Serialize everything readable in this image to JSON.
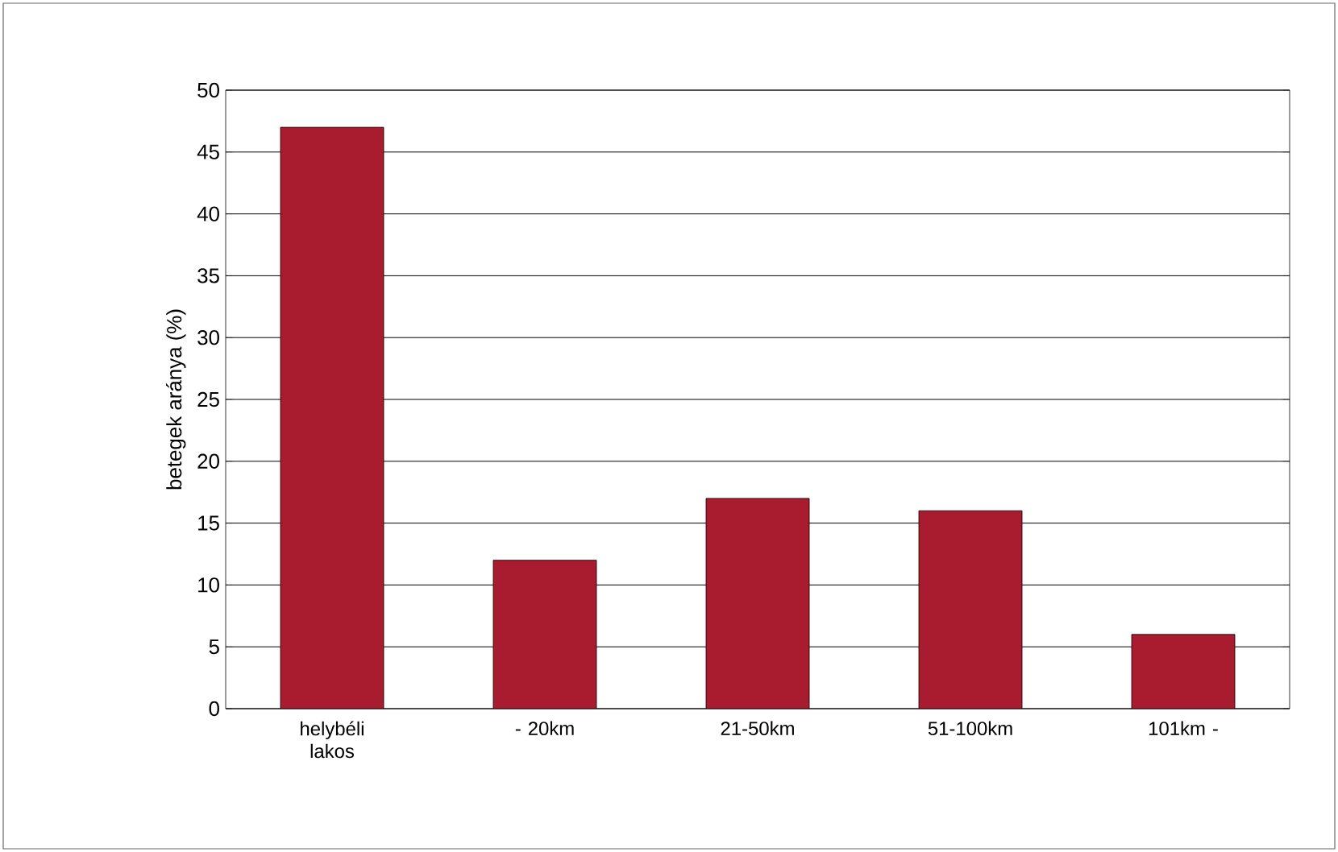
{
  "chart_data": {
    "type": "bar",
    "ylabel": "betegek aránya (%)",
    "categories": [
      "helybéli lakos",
      "- 20km",
      "21-50km",
      "51-100km",
      "101km -"
    ],
    "values": [
      47,
      12,
      17,
      16,
      6
    ],
    "color": "#a91b2e",
    "ylim": [
      0,
      50
    ],
    "yticks": [
      0,
      5,
      10,
      15,
      20,
      25,
      30,
      35,
      40,
      45,
      50
    ],
    "grid": "y"
  }
}
